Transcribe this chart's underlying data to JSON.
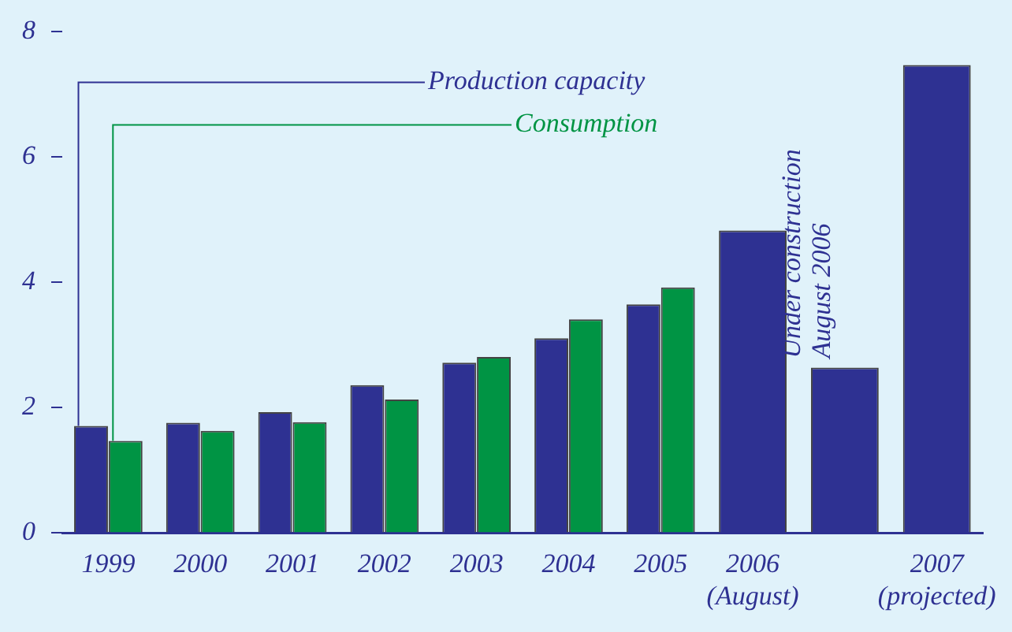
{
  "chart_data": {
    "type": "bar",
    "categories": [
      "1999",
      "2000",
      "2001",
      "2002",
      "2003",
      "2004",
      "2005",
      "2006\n(August)",
      null,
      "2007\n(projected)"
    ],
    "series": [
      {
        "name": "Production capacity",
        "color": "#2e3192",
        "values": [
          1.71,
          1.76,
          1.93,
          2.36,
          2.72,
          3.11,
          3.65,
          4.83,
          2.64,
          7.47
        ]
      },
      {
        "name": "Consumption",
        "color": "#009444",
        "values": [
          1.47,
          1.63,
          1.77,
          2.13,
          2.81,
          3.41,
          3.92,
          null,
          null,
          null
        ]
      }
    ],
    "annotations": [
      "Under construction\nAugust 2006"
    ],
    "ylim": [
      0,
      8
    ],
    "yticks": [
      0,
      2,
      4,
      6,
      8
    ],
    "grid": false,
    "legend": false
  }
}
